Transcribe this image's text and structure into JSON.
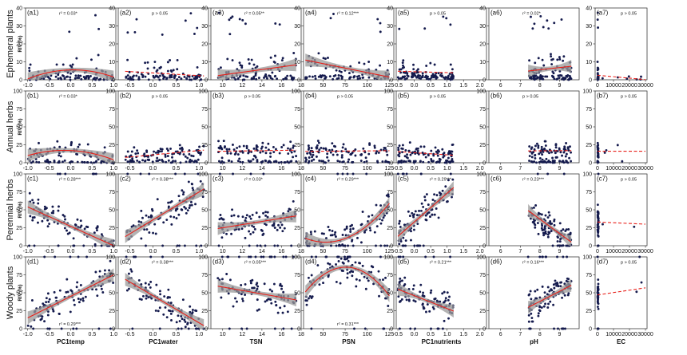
{
  "chart_data": {
    "type": "scatter",
    "y_axis_label": "RIV (%)",
    "rows": [
      {
        "id": "a",
        "label": "Ephemeral plants",
        "ylim": [
          0,
          40
        ],
        "yticks": [
          0,
          10,
          20,
          30,
          40
        ],
        "y_hi": 38
      },
      {
        "id": "b",
        "label": "Annual herbs",
        "ylim": [
          0,
          100
        ],
        "yticks": [
          0,
          25,
          50,
          75,
          100
        ],
        "y_hi": 60
      },
      {
        "id": "c",
        "label": "Perennial herbs",
        "ylim": [
          0,
          100
        ],
        "yticks": [
          0,
          25,
          50,
          75,
          100
        ],
        "y_hi": 100
      },
      {
        "id": "d",
        "label": "Woody plants",
        "ylim": [
          0,
          100
        ],
        "yticks": [
          0,
          25,
          50,
          75,
          100
        ],
        "y_hi": 100
      }
    ],
    "columns": [
      {
        "xlabel": "PC1temp",
        "xlim": [
          -1.05,
          1.05
        ],
        "xticks": [
          -1.0,
          -0.5,
          0.0,
          0.5,
          1.0
        ],
        "tick_labels": [
          "-1.0",
          "-0.5",
          "0.0",
          "0.5",
          "1.0"
        ],
        "x_lo": -1.0,
        "x_hi": 1.0
      },
      {
        "xlabel": "PC1water",
        "xlim": [
          -0.75,
          1.2
        ],
        "xticks": [
          -0.5,
          0.0,
          0.5,
          1.0
        ],
        "tick_labels": [
          "-0.5",
          "0.0",
          "0.5",
          "1.0"
        ],
        "x_lo": -0.6,
        "x_hi": 1.1
      },
      {
        "xlabel": "TSN",
        "xlim": [
          8.8,
          18
        ],
        "xticks": [
          10,
          12,
          14,
          16,
          18
        ],
        "tick_labels": [
          "10",
          "12",
          "14",
          "16",
          "18"
        ],
        "x_lo": 9.5,
        "x_hi": 17.5
      },
      {
        "xlabel": "PSN",
        "xlim": [
          28,
          130
        ],
        "xticks": [
          50,
          75,
          100,
          125
        ],
        "tick_labels": [
          "50",
          "75",
          "100",
          "125"
        ],
        "x_lo": 30,
        "x_hi": 125
      },
      {
        "xlabel": "PC1nutrients",
        "xlim": [
          -0.55,
          2.2
        ],
        "xticks": [
          -0.5,
          0.0,
          0.5,
          1.0,
          1.5,
          2.0
        ],
        "tick_labels": [
          "-0.5",
          "0.0",
          "0.5",
          "1.0",
          "1.5",
          "2.0"
        ],
        "x_lo": -0.5,
        "x_hi": 1.2
      },
      {
        "xlabel": "pH",
        "xlim": [
          5.4,
          10.0
        ],
        "xticks": [
          6,
          7,
          8,
          9
        ],
        "tick_labels": [
          "6",
          "7",
          "8",
          "9"
        ],
        "x_lo": 7.4,
        "x_hi": 9.6
      },
      {
        "xlabel": "EC",
        "xlim": [
          -1500,
          31000
        ],
        "xticks": [
          0,
          10000,
          20000,
          30000
        ],
        "tick_labels": [
          "0",
          "10000",
          "20000",
          "30000"
        ],
        "x_lo": 0,
        "x_hi": 1500
      }
    ],
    "panels": [
      {
        "tag": "(a1)",
        "stat": "r² = 0.03*",
        "fit": "quadratic",
        "coef": [
          5.5,
          0.5,
          -4.5
        ],
        "sig": true
      },
      {
        "tag": "(a2)",
        "stat": "p > 0.05",
        "fit": "linear",
        "coef": [
          3.8,
          -1.5
        ],
        "sig": false
      },
      {
        "tag": "(a3)",
        "stat": "r² = 0.05**",
        "fit": "linear",
        "coef": [
          -4.8,
          0.75
        ],
        "sig": true
      },
      {
        "tag": "(a4)",
        "stat": "r² = 0.12***",
        "fit": "linear",
        "coef": [
          14.0,
          -0.1
        ],
        "sig": true
      },
      {
        "tag": "(a5)",
        "stat": "p > 0.05",
        "fit": "linear",
        "coef": [
          4.5,
          -0.5
        ],
        "sig": false
      },
      {
        "tag": "(a6)",
        "stat": "r² = 0.02*",
        "fit": "linear",
        "coef": [
          -4.0,
          1.2
        ],
        "sig": true
      },
      {
        "tag": "(a7)",
        "stat": "p > 0.05",
        "fit": "linear",
        "coef": [
          2.5,
          -8e-05
        ],
        "sig": false
      },
      {
        "tag": "(b1)",
        "stat": "r² = 0.03*",
        "fit": "quadratic",
        "coef": [
          17.0,
          -3.0,
          -10.0
        ],
        "sig": true
      },
      {
        "tag": "(b2)",
        "stat": "p > 0.05",
        "fit": "linear",
        "coef": [
          11.0,
          6.0
        ],
        "sig": false
      },
      {
        "tag": "(b3)",
        "stat": "p > 0.05",
        "fit": "linear",
        "coef": [
          14.0,
          0.2
        ],
        "sig": false
      },
      {
        "tag": "(b4)",
        "stat": "p > 0.05",
        "fit": "linear",
        "coef": [
          15.5,
          0.01
        ],
        "sig": false
      },
      {
        "tag": "(b5)",
        "stat": "p > 0.05",
        "fit": "linear",
        "coef": [
          14.0,
          -3.0
        ],
        "sig": false
      },
      {
        "tag": "(b6)",
        "stat": "p > 0.05",
        "fit": "linear",
        "coef": [
          15.0,
          0.2
        ],
        "sig": false
      },
      {
        "tag": "(b7)",
        "stat": "p > 0.05",
        "fit": "linear",
        "coef": [
          16.0,
          0.0
        ],
        "sig": false
      },
      {
        "tag": "(c1)",
        "stat": "r² = 0.28***",
        "fit": "linear",
        "coef": [
          27.0,
          -27.0
        ],
        "sig": true
      },
      {
        "tag": "(c2)",
        "stat": "r² = 0.38***",
        "fit": "linear",
        "coef": [
          36.0,
          39.0
        ],
        "sig": true
      },
      {
        "tag": "(c3)",
        "stat": "r² = 0.03*",
        "fit": "linear",
        "coef": [
          3.0,
          2.2
        ],
        "sig": true
      },
      {
        "tag": "(c4)",
        "stat": "r² = 0.29***",
        "fit": "quadratic",
        "coef": [
          34.0,
          -1.1,
          0.0104
        ],
        "sig": true
      },
      {
        "tag": "(c5)",
        "stat": "r² = 0.29***",
        "fit": "linear",
        "coef": [
          33.0,
          40.0
        ],
        "sig": true
      },
      {
        "tag": "(c6)",
        "stat": "r² = 0.23***",
        "fit": "linear",
        "coef": [
          197.0,
          -20.0
        ],
        "sig": true
      },
      {
        "tag": "(c7)",
        "stat": "p > 0.05",
        "fit": "linear",
        "coef": [
          33.0,
          -0.0001
        ],
        "sig": false
      },
      {
        "tag": "(d1)",
        "stat": "r² = 0.29***",
        "fit": "linear",
        "coef": [
          45.0,
          30.0
        ],
        "sig": true
      },
      {
        "tag": "(d2)",
        "stat": "r² = 0.38***",
        "fit": "linear",
        "coef": [
          46.0,
          -38.0
        ],
        "sig": true
      },
      {
        "tag": "(d3)",
        "stat": "r² = 0.05***",
        "fit": "linear",
        "coef": [
          82.0,
          -2.4
        ],
        "sig": true
      },
      {
        "tag": "(d4)",
        "stat": "r² = 0.31***",
        "fit": "quadratic",
        "coef": [
          -9.0,
          2.5,
          -0.0165
        ],
        "sig": true
      },
      {
        "tag": "(d5)",
        "stat": "r² = 0.21***",
        "fit": "linear",
        "coef": [
          46.0,
          -18.0
        ],
        "sig": true
      },
      {
        "tag": "(d6)",
        "stat": "r² = 0.16***",
        "fit": "linear",
        "coef": [
          -74.0,
          14.0
        ],
        "sig": true
      },
      {
        "tag": "(d7)",
        "stat": "p > 0.05",
        "fit": "linear",
        "coef": [
          47.0,
          0.00033
        ],
        "sig": false
      }
    ]
  }
}
